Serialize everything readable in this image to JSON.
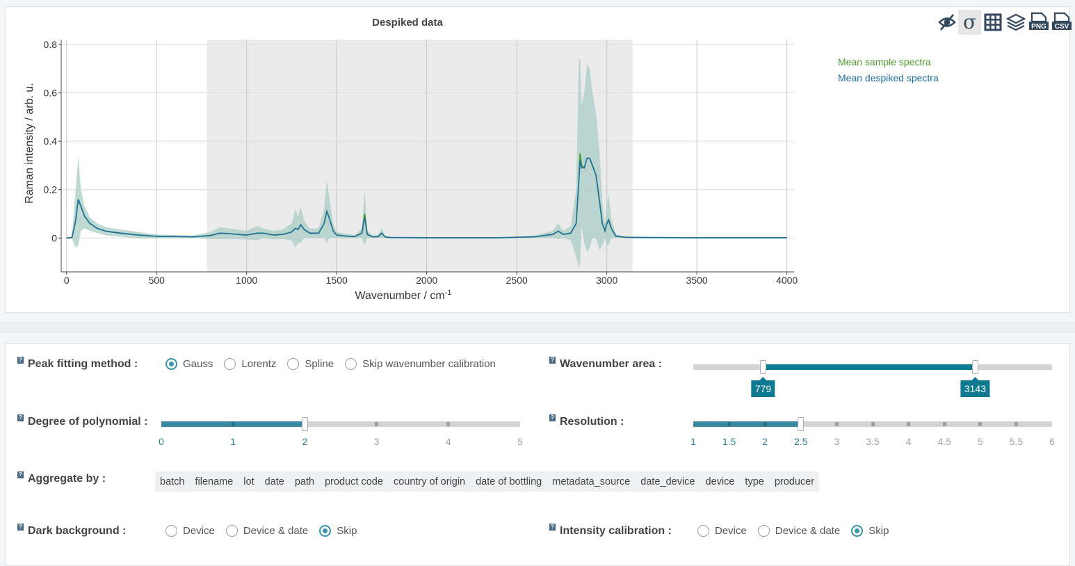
{
  "toolbar": {
    "icons": [
      "eye-off-icon",
      "sigma-icon",
      "grid-icon",
      "layers-icon",
      "png-icon",
      "csv-icon"
    ],
    "sigma_glyph": "σ",
    "png_text": "PNG",
    "csv_text": "CSV"
  },
  "chart_data": {
    "type": "line",
    "title": "Despiked data",
    "xlabel": "Wavenumber / cm",
    "xlabel_sup": "-1",
    "ylabel": "Raman intensity / arb. u.",
    "xlim": [
      -30,
      4040
    ],
    "ylim": [
      -0.14,
      0.82
    ],
    "xticks": [
      0,
      500,
      1000,
      1500,
      2000,
      2500,
      3000,
      3500,
      4000
    ],
    "yticks": [
      0,
      0.2,
      0.4,
      0.6,
      0.8
    ],
    "ytick_labels": [
      "0",
      "0.2",
      "0.4",
      "0.6",
      "0.8"
    ],
    "grid": true,
    "highlight_range": [
      779,
      3143
    ],
    "legend": {
      "position": "right",
      "entries": [
        "Mean sample spectra",
        "Mean despiked spectra"
      ]
    },
    "colors": {
      "sample": "#4c9a2a",
      "despiked": "#1f6fa3",
      "band": "#a9cdc6",
      "highlight": "#ebebeb"
    },
    "series": [
      {
        "name": "Mean sample spectra",
        "x": [
          0,
          30,
          50,
          65,
          80,
          100,
          130,
          170,
          220,
          300,
          400,
          500,
          600,
          700,
          800,
          850,
          900,
          950,
          1000,
          1060,
          1090,
          1150,
          1200,
          1250,
          1270,
          1285,
          1300,
          1320,
          1350,
          1400,
          1430,
          1445,
          1460,
          1480,
          1500,
          1550,
          1600,
          1640,
          1655,
          1670,
          1700,
          1730,
          1750,
          1770,
          1800,
          2000,
          2200,
          2400,
          2600,
          2700,
          2730,
          2760,
          2800,
          2830,
          2845,
          2852,
          2860,
          2875,
          2890,
          2905,
          2920,
          2940,
          2960,
          2975,
          2990,
          3000,
          3010,
          3025,
          3050,
          3100,
          3200,
          3500,
          4000
        ],
        "y": [
          0,
          0.002,
          0.07,
          0.16,
          0.13,
          0.09,
          0.06,
          0.04,
          0.028,
          0.02,
          0.012,
          0.007,
          0.006,
          0.005,
          0.01,
          0.02,
          0.018,
          0.015,
          0.012,
          0.02,
          0.02,
          0.012,
          0.015,
          0.025,
          0.04,
          0.035,
          0.055,
          0.035,
          0.02,
          0.02,
          0.06,
          0.11,
          0.08,
          0.03,
          0.012,
          0.008,
          0.006,
          0.02,
          0.1,
          0.015,
          0.005,
          0.006,
          0.02,
          0.004,
          0.002,
          0.001,
          0.001,
          0.001,
          0.005,
          0.015,
          0.028,
          0.015,
          0.02,
          0.06,
          0.24,
          0.35,
          0.3,
          0.29,
          0.33,
          0.33,
          0.3,
          0.26,
          0.15,
          0.06,
          0.03,
          0.06,
          0.075,
          0.04,
          0.008,
          0.003,
          0.002,
          0.001,
          0.001
        ]
      },
      {
        "name": "Mean despiked spectra",
        "x": [
          0,
          30,
          50,
          65,
          80,
          100,
          130,
          170,
          220,
          300,
          400,
          500,
          600,
          700,
          800,
          850,
          900,
          950,
          1000,
          1060,
          1090,
          1150,
          1200,
          1250,
          1270,
          1285,
          1300,
          1320,
          1350,
          1400,
          1430,
          1445,
          1460,
          1480,
          1500,
          1550,
          1600,
          1640,
          1655,
          1670,
          1700,
          1730,
          1750,
          1770,
          1800,
          2000,
          2200,
          2400,
          2600,
          2700,
          2730,
          2760,
          2800,
          2830,
          2845,
          2852,
          2860,
          2875,
          2890,
          2905,
          2920,
          2940,
          2960,
          2975,
          2990,
          3000,
          3010,
          3025,
          3050,
          3100,
          3200,
          3500,
          4000
        ],
        "y": [
          0,
          0.002,
          0.07,
          0.16,
          0.13,
          0.09,
          0.06,
          0.04,
          0.028,
          0.02,
          0.012,
          0.007,
          0.006,
          0.005,
          0.01,
          0.02,
          0.018,
          0.015,
          0.012,
          0.02,
          0.02,
          0.012,
          0.015,
          0.025,
          0.04,
          0.035,
          0.055,
          0.035,
          0.02,
          0.02,
          0.06,
          0.11,
          0.08,
          0.03,
          0.012,
          0.008,
          0.006,
          0.02,
          0.085,
          0.015,
          0.005,
          0.006,
          0.02,
          0.004,
          0.002,
          0.001,
          0.001,
          0.001,
          0.005,
          0.015,
          0.028,
          0.015,
          0.02,
          0.06,
          0.24,
          0.32,
          0.29,
          0.29,
          0.33,
          0.33,
          0.3,
          0.26,
          0.15,
          0.06,
          0.03,
          0.06,
          0.075,
          0.04,
          0.008,
          0.003,
          0.002,
          0.001,
          0.001
        ]
      }
    ],
    "std_band": {
      "x": [
        0,
        30,
        50,
        65,
        80,
        100,
        130,
        170,
        220,
        300,
        400,
        500,
        600,
        700,
        800,
        850,
        900,
        950,
        1000,
        1060,
        1090,
        1150,
        1200,
        1250,
        1270,
        1285,
        1300,
        1320,
        1350,
        1400,
        1430,
        1445,
        1460,
        1480,
        1500,
        1550,
        1600,
        1640,
        1655,
        1670,
        1700,
        1730,
        1750,
        1770,
        1800,
        2000,
        2200,
        2400,
        2600,
        2700,
        2730,
        2760,
        2800,
        2830,
        2845,
        2852,
        2860,
        2875,
        2890,
        2905,
        2920,
        2940,
        2960,
        2975,
        2990,
        3000,
        3010,
        3025,
        3050,
        3100,
        3200,
        3500,
        4000
      ],
      "upper": [
        0,
        0.005,
        0.2,
        0.34,
        0.2,
        0.13,
        0.085,
        0.06,
        0.045,
        0.035,
        0.025,
        0.015,
        0.012,
        0.01,
        0.025,
        0.045,
        0.04,
        0.035,
        0.03,
        0.05,
        0.04,
        0.03,
        0.035,
        0.06,
        0.12,
        0.09,
        0.13,
        0.07,
        0.04,
        0.04,
        0.12,
        0.24,
        0.16,
        0.06,
        0.025,
        0.018,
        0.012,
        0.04,
        0.2,
        0.03,
        0.01,
        0.012,
        0.04,
        0.008,
        0.004,
        0.002,
        0.002,
        0.002,
        0.01,
        0.03,
        0.06,
        0.03,
        0.05,
        0.2,
        0.74,
        0.74,
        0.55,
        0.6,
        0.72,
        0.7,
        0.6,
        0.52,
        0.35,
        0.15,
        0.06,
        0.15,
        0.18,
        0.08,
        0.016,
        0.006,
        0.004,
        0.002,
        0.002
      ],
      "lower": [
        0,
        -0.002,
        -0.04,
        -0.03,
        0.03,
        0.04,
        0.03,
        0.02,
        0.011,
        0.005,
        -0.001,
        -0.001,
        0,
        0,
        -0.005,
        -0.005,
        -0.004,
        -0.005,
        -0.006,
        -0.01,
        0,
        -0.006,
        -0.005,
        -0.01,
        -0.04,
        -0.02,
        -0.02,
        0,
        0,
        0,
        0,
        -0.02,
        0,
        0,
        0,
        -0.002,
        0,
        0,
        -0.03,
        0,
        0,
        0,
        0,
        0,
        0,
        0,
        0,
        0,
        0,
        0,
        -0.004,
        0,
        -0.01,
        -0.08,
        -0.12,
        -0.1,
        0.05,
        -0.02,
        -0.06,
        -0.04,
        0,
        0,
        -0.05,
        -0.03,
        0,
        -0.03,
        -0.03,
        0,
        0,
        0,
        0,
        0,
        0
      ]
    }
  },
  "settings": {
    "help_glyph": "?",
    "peak_fitting": {
      "label": "Peak fitting method :",
      "options": [
        "Gauss",
        "Lorentz",
        "Spline",
        "Skip wavenumber calibration"
      ],
      "selected": "Gauss"
    },
    "wavenumber_area": {
      "label": "Wavenumber area :",
      "min": 0,
      "max": 4000,
      "low": 779,
      "high": 3143,
      "low_label": "779",
      "high_label": "3143"
    },
    "degree_polynomial": {
      "label": "Degree of polynomial :",
      "ticks": [
        "0",
        "1",
        "2",
        "3",
        "4",
        "5"
      ],
      "value_index": 2
    },
    "resolution": {
      "label": "Resolution :",
      "ticks": [
        "1",
        "1.5",
        "2",
        "2.5",
        "3",
        "3.5",
        "4",
        "4.5",
        "5",
        "5.5",
        "6"
      ],
      "value_index": 3
    },
    "aggregate_by": {
      "label": "Aggregate by :",
      "items": [
        "batch",
        "filename",
        "lot",
        "date",
        "path",
        "product code",
        "country of origin",
        "date of bottling",
        "metadata_source",
        "date_device",
        "device",
        "type",
        "producer"
      ]
    },
    "dark_background": {
      "label": "Dark background :",
      "options": [
        "Device",
        "Device & date",
        "Skip"
      ],
      "selected": "Skip"
    },
    "intensity_calibration": {
      "label": "Intensity calibration :",
      "options": [
        "Device",
        "Device & date",
        "Skip"
      ],
      "selected": "Skip"
    }
  }
}
